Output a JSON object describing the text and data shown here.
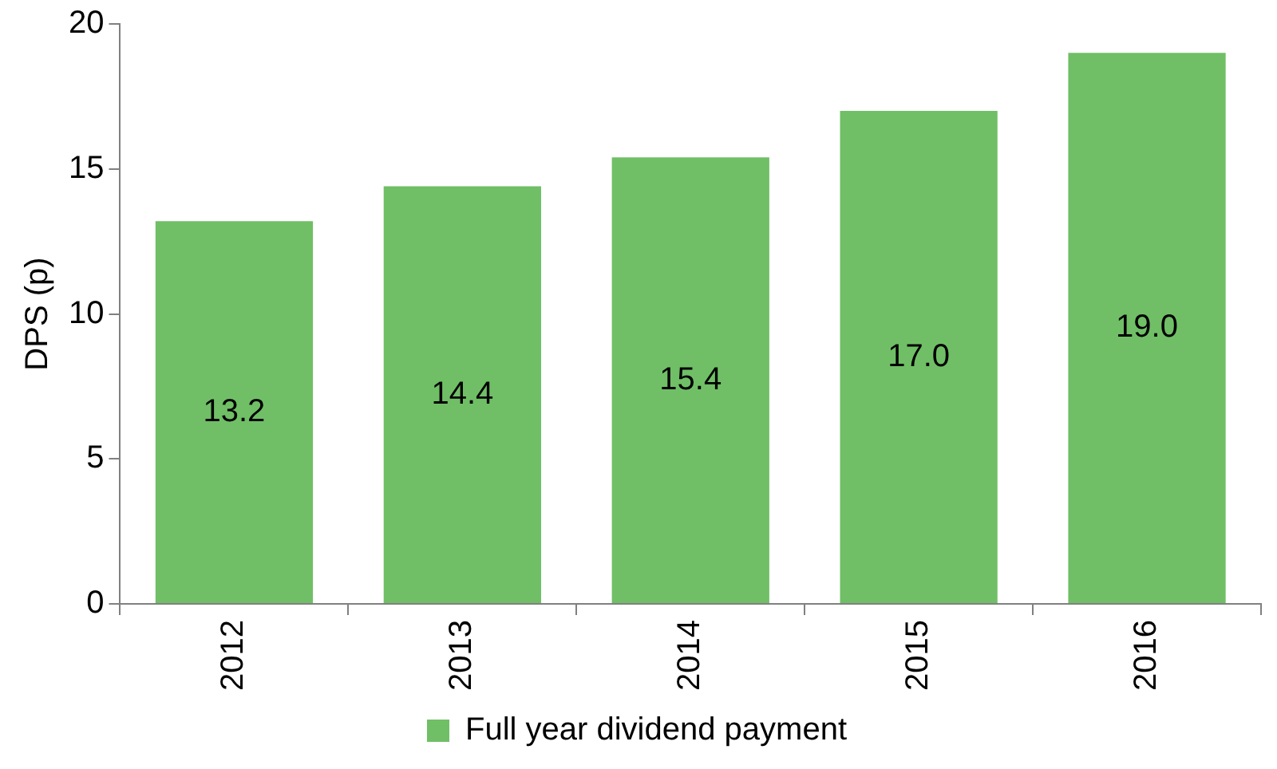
{
  "chart_data": {
    "type": "bar",
    "ylabel": "DPS (p)",
    "categories": [
      "2012",
      "2013",
      "2014",
      "2015",
      "2016"
    ],
    "series": [
      {
        "name": "Full year dividend payment",
        "color": "#70bf66",
        "values": [
          13.2,
          14.4,
          15.4,
          17.0,
          19.0
        ],
        "value_labels": [
          "13.2",
          "14.4",
          "15.4",
          "17.0",
          "19.0"
        ]
      }
    ],
    "ylim": [
      0,
      20
    ],
    "yticks": [
      0,
      5,
      10,
      15,
      20
    ],
    "grid": false,
    "legend": "bottom"
  }
}
